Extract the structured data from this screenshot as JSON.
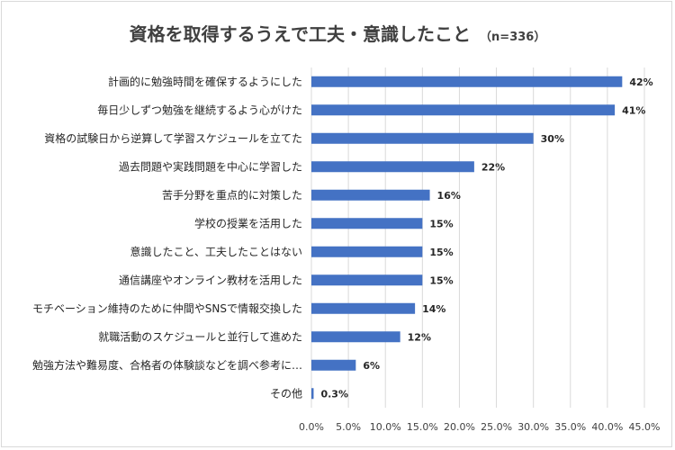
{
  "chart_data": {
    "type": "bar",
    "orientation": "horizontal",
    "title": "資格を取得するうえで工夫・意識したこと",
    "subtitle": "（n=336）",
    "categories": [
      "計画的に勉強時間を確保するようにした",
      "毎日少しずつ勉強を継続するよう心がけた",
      "資格の試験日から逆算して学習スケジュールを立てた",
      "過去問題や実践問題を中心に学習した",
      "苦手分野を重点的に対策した",
      "学校の授業を活用した",
      "意識したこと、工夫したことはない",
      "通信講座やオンライン教材を活用した",
      "モチベーション維持のために仲間やSNSで情報交換した",
      "就職活動のスケジュールと並行して進めた",
      "勉強方法や難易度、合格者の体験談などを調べ参考に…",
      "その他"
    ],
    "values": [
      42,
      41,
      30,
      22,
      16,
      15,
      15,
      15,
      14,
      12,
      6,
      0.3
    ],
    "value_labels": [
      "42%",
      "41%",
      "30%",
      "22%",
      "16%",
      "15%",
      "15%",
      "15%",
      "14%",
      "12%",
      "6%",
      "0.3%"
    ],
    "xlim": [
      0,
      45
    ],
    "xticks": [
      "0.0%",
      "5.0%",
      "10.0%",
      "15.0%",
      "20.0%",
      "25.0%",
      "30.0%",
      "35.0%",
      "40.0%",
      "45.0%"
    ],
    "grid": true,
    "bar_color": "#4472c4",
    "grid_color": "#d9d9d9"
  }
}
